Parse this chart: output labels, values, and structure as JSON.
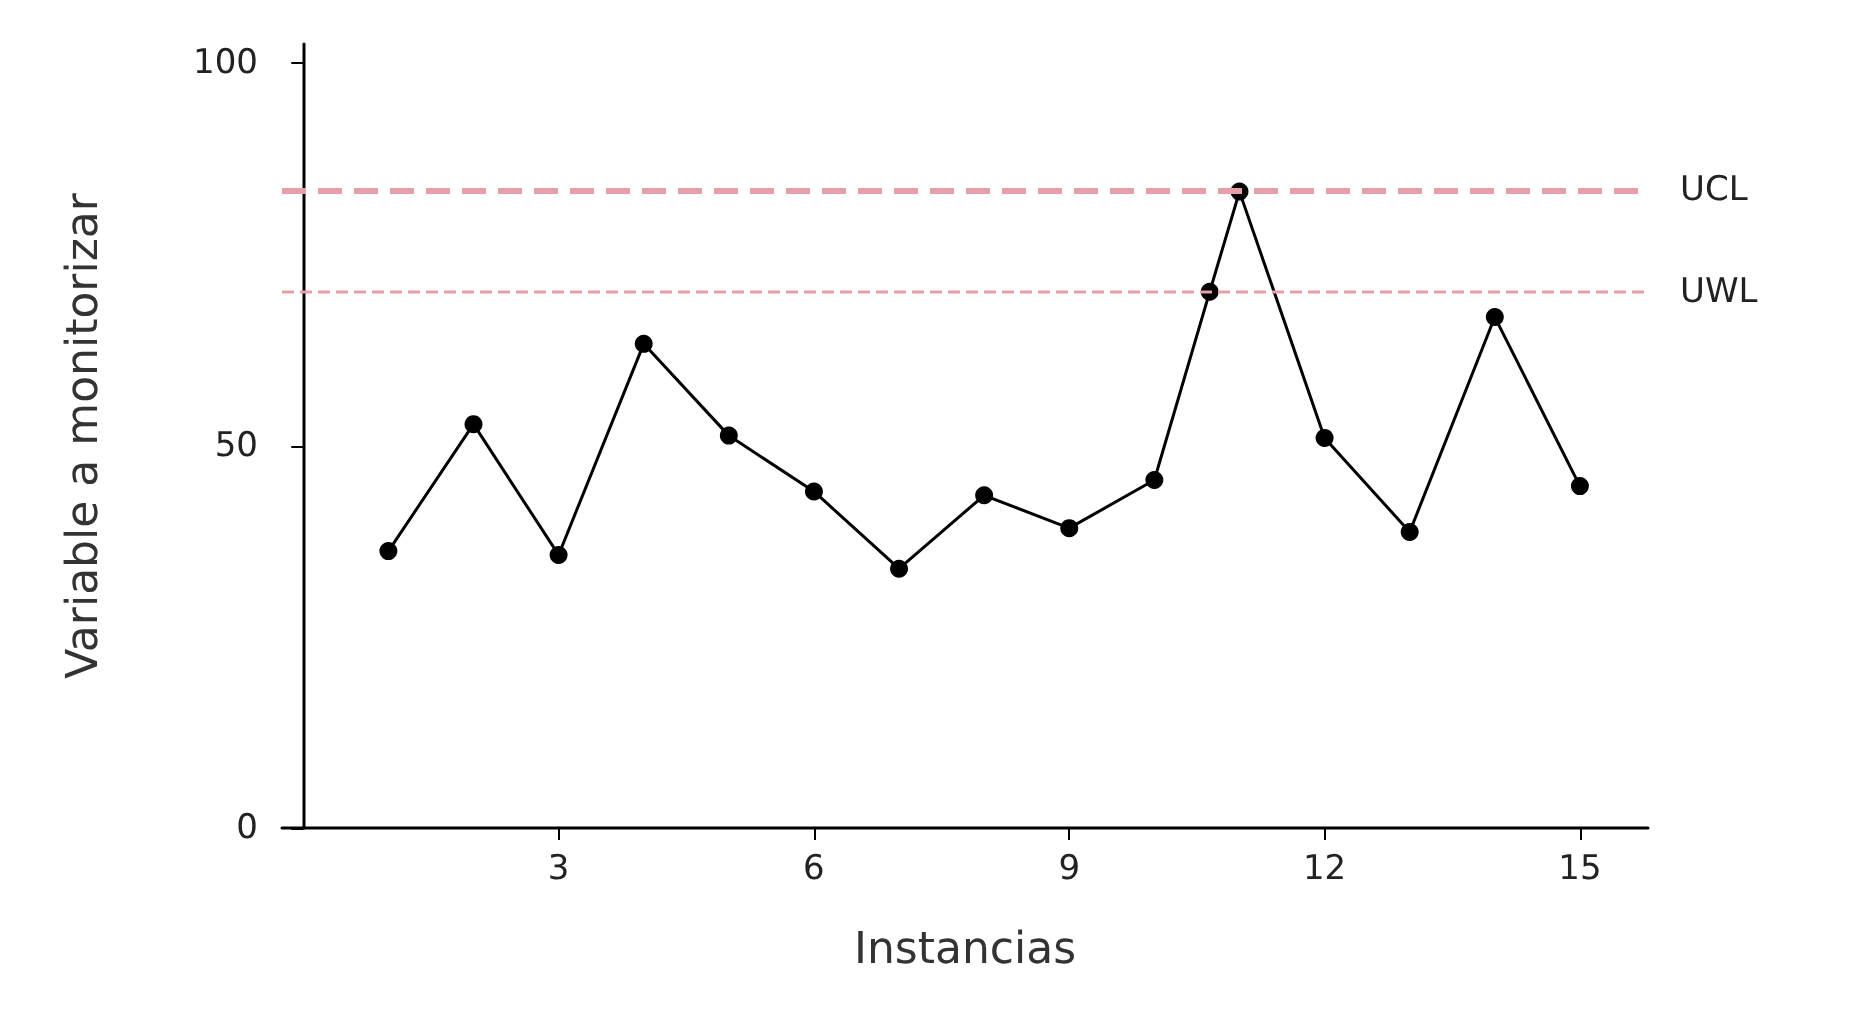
{
  "chart_data": {
    "type": "line",
    "xlabel": "Instancias",
    "ylabel": "Variable a monitorizar",
    "x": [
      1,
      2,
      3,
      4,
      5,
      6,
      7,
      8,
      9,
      10,
      10.65,
      11,
      12,
      13,
      14,
      15
    ],
    "series": [
      {
        "color": "#000000",
        "values": [
          36.2,
          52.8,
          35.7,
          63.3,
          51.3,
          44,
          33.9,
          43.5,
          39.2,
          45.5,
          70.1,
          83.2,
          51,
          38.7,
          66.8,
          44.7
        ]
      }
    ],
    "xlim": [
      -0.25,
      15.8
    ],
    "xticks": [
      3,
      6,
      9,
      12,
      15
    ],
    "ylim": [
      0,
      102.5
    ],
    "yticks": [
      0,
      50,
      100
    ],
    "ref_lines": [
      {
        "axis": "y",
        "value": 83.4,
        "label": "UCL",
        "color": "#e8a0a8",
        "line_style": "dashed"
      },
      {
        "axis": "y",
        "value": 70.1,
        "label": "UWL",
        "color": "#e8a0a8",
        "line_style": "dashed"
      }
    ],
    "marker": "circle",
    "line_style": "solid"
  }
}
